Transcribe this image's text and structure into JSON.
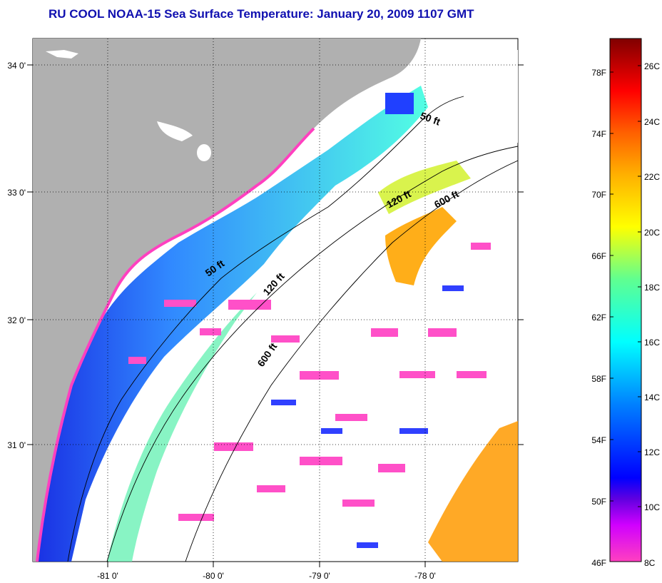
{
  "title": "RU COOL  NOAA-15  Sea Surface Temperature:  January 20, 2009 1107 GMT",
  "colors": {
    "land": "#b0b0b0",
    "title": "#1010b0",
    "no_data": "#ffffff"
  },
  "map": {
    "lat_ticks": [
      "34 0'",
      "33 0'",
      "32 0'",
      "31 0'"
    ],
    "lon_ticks": [
      "-81 0'",
      "-80 0'",
      "-79 0'",
      "-78 0'"
    ],
    "contour_labels": [
      "50 ft",
      "120 ft",
      "600 ft",
      "50 ft",
      "120 ft",
      "600 ft"
    ]
  },
  "colorbar": {
    "fahrenheit": [
      "78F",
      "74F",
      "70F",
      "66F",
      "62F",
      "58F",
      "54F",
      "50F",
      "46F"
    ],
    "celsius": [
      "26C",
      "24C",
      "22C",
      "20C",
      "18C",
      "16C",
      "14C",
      "12C",
      "10C",
      "8C"
    ],
    "gradient": [
      "#ff40c0",
      "#d000ff",
      "#6000e0",
      "#0000ff",
      "#0080ff",
      "#00ffff",
      "#60ff90",
      "#ffff00",
      "#ffb000",
      "#ff6000",
      "#ff0000",
      "#c00000",
      "#800000"
    ]
  }
}
